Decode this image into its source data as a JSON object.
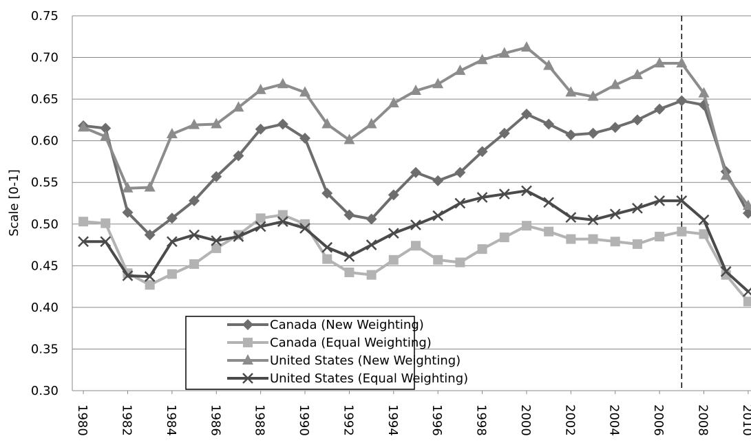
{
  "chart_data": {
    "type": "line",
    "y_label": "Scale [0-1]",
    "x": [
      1980,
      1981,
      1982,
      1983,
      1984,
      1985,
      1986,
      1987,
      1988,
      1989,
      1990,
      1991,
      1992,
      1993,
      1994,
      1995,
      1996,
      1997,
      1998,
      1999,
      2000,
      2001,
      2002,
      2003,
      2004,
      2005,
      2006,
      2007,
      2008,
      2009,
      2010
    ],
    "series": [
      {
        "name": "Canada (New Weighting)",
        "color": "#6d6d6d",
        "marker": "diamond",
        "values": [
          0.618,
          0.615,
          0.514,
          0.487,
          0.507,
          0.528,
          0.557,
          0.582,
          0.614,
          0.62,
          0.603,
          0.537,
          0.511,
          0.506,
          0.535,
          0.562,
          0.552,
          0.562,
          0.587,
          0.609,
          0.632,
          0.62,
          0.607,
          0.609,
          0.616,
          0.625,
          0.638,
          0.648,
          0.643,
          0.563,
          0.513
        ]
      },
      {
        "name": "Canada (Equal Weighting)",
        "color": "#b3b3b3",
        "marker": "square",
        "values": [
          0.503,
          0.501,
          0.441,
          0.427,
          0.44,
          0.452,
          0.471,
          0.487,
          0.507,
          0.511,
          0.5,
          0.458,
          0.442,
          0.439,
          0.457,
          0.474,
          0.457,
          0.454,
          0.47,
          0.484,
          0.498,
          0.491,
          0.482,
          0.482,
          0.479,
          0.476,
          0.485,
          0.491,
          0.488,
          0.439,
          0.407
        ]
      },
      {
        "name": "United States (New Weighting)",
        "color": "#8c8c8c",
        "marker": "triangle",
        "values": [
          0.616,
          0.605,
          0.543,
          0.544,
          0.608,
          0.619,
          0.62,
          0.64,
          0.661,
          0.668,
          0.658,
          0.62,
          0.601,
          0.62,
          0.645,
          0.66,
          0.668,
          0.684,
          0.697,
          0.705,
          0.712,
          0.69,
          0.658,
          0.653,
          0.667,
          0.679,
          0.693,
          0.693,
          0.657,
          0.558,
          0.522
        ]
      },
      {
        "name": "United States (Equal Weighting)",
        "color": "#4a4a4a",
        "marker": "x",
        "values": [
          0.479,
          0.479,
          0.438,
          0.437,
          0.479,
          0.487,
          0.48,
          0.485,
          0.497,
          0.503,
          0.495,
          0.472,
          0.461,
          0.475,
          0.489,
          0.499,
          0.51,
          0.525,
          0.532,
          0.536,
          0.54,
          0.526,
          0.508,
          0.505,
          0.512,
          0.519,
          0.528,
          0.528,
          0.505,
          0.443,
          0.419
        ]
      }
    ],
    "xlim": [
      1979.5,
      2010.5
    ],
    "xticks": [
      1980,
      1982,
      1984,
      1986,
      1988,
      1990,
      1992,
      1994,
      1996,
      1998,
      2000,
      2002,
      2004,
      2006,
      2008,
      2010
    ],
    "ylim": [
      0.3,
      0.75
    ],
    "yticks": [
      {
        "value": 0.3,
        "label": "0.30"
      },
      0.35,
      {
        "value": 0.4,
        "label": "0.40"
      },
      0.45,
      {
        "value": 0.5,
        "label": "0.50"
      },
      0.55,
      {
        "value": 0.6,
        "label": "0.60"
      },
      0.65,
      {
        "value": 0.7,
        "label": "0.70"
      },
      0.75
    ],
    "grid": true,
    "reference_line_x": 2007,
    "legend": "bottom-left"
  }
}
